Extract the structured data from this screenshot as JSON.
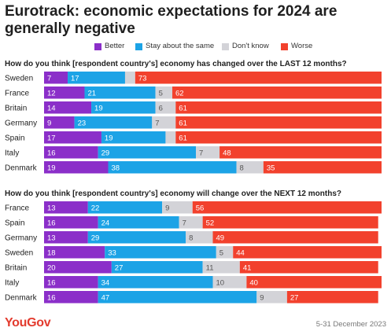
{
  "title": "Eurotrack: economic expectations for 2024 are generally negative",
  "footer": {
    "brand": "YouGov",
    "date": "5-31 December 2023"
  },
  "colors": {
    "Better": "#8b2fc9",
    "Stay about the same": "#1ca3e6",
    "Don't know": "#d3d3d8",
    "Worse": "#f2412d"
  },
  "chart_data": [
    {
      "type": "bar",
      "stacked": true,
      "orientation": "horizontal",
      "title": "How do you think [respondent country's] economy has changed over the LAST 12 months?",
      "legend": [
        "Better",
        "Stay about the same",
        "Don't know",
        "Worse"
      ],
      "legend_position": "top",
      "categories": [
        "Sweden",
        "France",
        "Britain",
        "Germany",
        "Spain",
        "Italy",
        "Denmark"
      ],
      "series": [
        {
          "name": "Better",
          "values": [
            7,
            12,
            14,
            9,
            17,
            16,
            19
          ]
        },
        {
          "name": "Stay about the same",
          "values": [
            17,
            21,
            19,
            23,
            19,
            29,
            38
          ]
        },
        {
          "name": "Don't know",
          "values": [
            3,
            5,
            6,
            7,
            3,
            7,
            8
          ]
        },
        {
          "name": "Worse",
          "values": [
            73,
            62,
            61,
            61,
            61,
            48,
            35
          ]
        }
      ],
      "value_labels": [
        [
          "7",
          "17",
          "",
          "73"
        ],
        [
          "12",
          "21",
          "5",
          "62"
        ],
        [
          "14",
          "19",
          "6",
          "61"
        ],
        [
          "9",
          "23",
          "7",
          "61"
        ],
        [
          "17",
          "19",
          "",
          "61"
        ],
        [
          "16",
          "29",
          "7",
          "48"
        ],
        [
          "19",
          "38",
          "8",
          "35"
        ]
      ],
      "xlim": [
        0,
        100
      ],
      "grid": false
    },
    {
      "type": "bar",
      "stacked": true,
      "orientation": "horizontal",
      "title": "How do you think [respondent country's] economy will change over the NEXT 12 months?",
      "categories": [
        "France",
        "Spain",
        "Germany",
        "Sweden",
        "Britain",
        "Italy",
        "Denmark"
      ],
      "series": [
        {
          "name": "Better",
          "values": [
            13,
            16,
            13,
            18,
            20,
            16,
            16
          ]
        },
        {
          "name": "Stay about the same",
          "values": [
            22,
            24,
            29,
            33,
            27,
            34,
            47
          ]
        },
        {
          "name": "Don't know",
          "values": [
            9,
            7,
            8,
            5,
            11,
            10,
            9
          ]
        },
        {
          "name": "Worse",
          "values": [
            56,
            52,
            49,
            44,
            41,
            40,
            27
          ]
        }
      ],
      "value_labels": [
        [
          "13",
          "22",
          "9",
          "56"
        ],
        [
          "16",
          "24",
          "7",
          "52"
        ],
        [
          "13",
          "29",
          "8",
          "49"
        ],
        [
          "18",
          "33",
          "5",
          "44"
        ],
        [
          "20",
          "27",
          "11",
          "41"
        ],
        [
          "16",
          "34",
          "10",
          "40"
        ],
        [
          "16",
          "47",
          "9",
          "27"
        ]
      ],
      "xlim": [
        0,
        100
      ],
      "grid": false
    }
  ]
}
